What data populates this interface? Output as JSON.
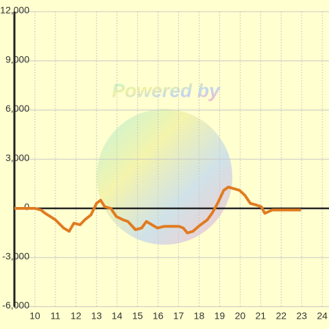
{
  "chart_data": {
    "type": "line",
    "watermark": "Powered by",
    "x": [
      9,
      10,
      10.3,
      10.5,
      11,
      11.4,
      11.67,
      11.9,
      12.2,
      12.43,
      12.73,
      13,
      13.2,
      13.4,
      13.7,
      13.97,
      14.3,
      14.53,
      14.9,
      15.2,
      15.43,
      15.7,
      15.97,
      16.3,
      17.03,
      17.23,
      17.43,
      17.7,
      17.97,
      18.4,
      18.63,
      18.9,
      19.2,
      19.43,
      19.7,
      19.97,
      20.23,
      20.5,
      20.8,
      21.03,
      21.2,
      21.57,
      22.3,
      22.97
    ],
    "series": [
      {
        "color": "#e07b20",
        "values": [
          0,
          0,
          -100,
          -300,
          -700,
          -1200,
          -1400,
          -900,
          -1000,
          -700,
          -400,
          300,
          500,
          100,
          0,
          -500,
          -700,
          -800,
          -1300,
          -1200,
          -800,
          -1000,
          -1200,
          -1100,
          -1100,
          -1200,
          -1500,
          -1400,
          -1100,
          -700,
          -300,
          300,
          1100,
          1300,
          1200,
          1100,
          800,
          300,
          200,
          100,
          -300,
          -100,
          -100,
          -100
        ]
      }
    ],
    "xlim": [
      9,
      24.33
    ],
    "xticks": [
      10,
      11,
      12,
      13,
      14,
      15,
      16,
      17,
      18,
      19,
      20,
      21,
      22,
      23,
      24
    ],
    "ylim": [
      -6000,
      12000
    ],
    "yticks": [
      {
        "value": -6000,
        "label": "-6,000"
      },
      {
        "value": -3000,
        "label": "-3,000"
      },
      0,
      {
        "value": 3000,
        "label": "3,000"
      },
      {
        "value": 6000,
        "label": "6,000"
      },
      {
        "value": 9000,
        "label": "9,000"
      },
      {
        "value": 12000,
        "label": "12,000"
      }
    ],
    "grid": true
  }
}
